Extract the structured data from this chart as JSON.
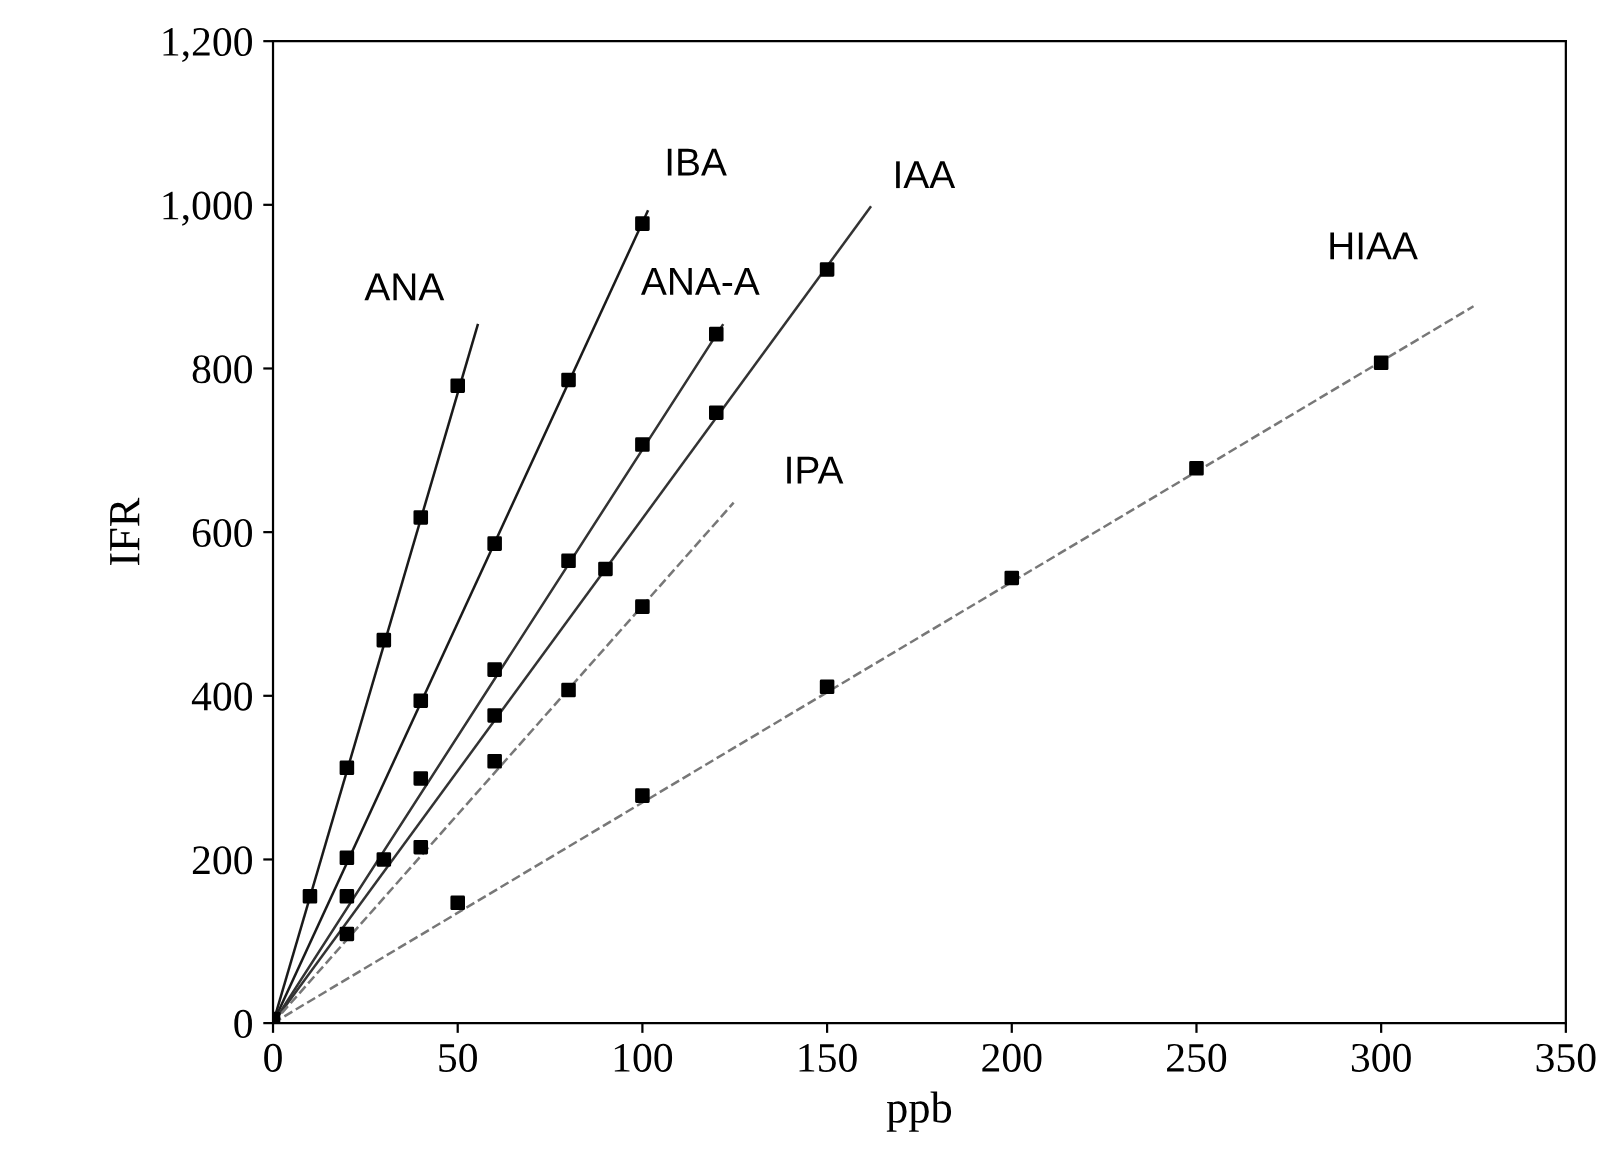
{
  "chart_data": {
    "type": "scatter",
    "xlabel": "ppb",
    "ylabel": "IFR",
    "xlim": [
      0,
      350
    ],
    "ylim": [
      0,
      1200
    ],
    "xticks": [
      0,
      50,
      100,
      150,
      200,
      250,
      300,
      350
    ],
    "yticks": [
      0,
      200,
      400,
      600,
      800,
      {
        "value": 1000,
        "label": "1,000"
      },
      {
        "value": 1200,
        "label": "1,200"
      }
    ],
    "grid": false,
    "legend": false,
    "series": [
      {
        "marker": "square",
        "color": "#000000",
        "x": [
          0,
          10,
          20,
          30,
          40,
          50
        ],
        "values": [
          5,
          155,
          312,
          468,
          618,
          779
        ]
      },
      {
        "marker": "square",
        "color": "#000000",
        "x": [
          20,
          40,
          60,
          80,
          100
        ],
        "values": [
          202,
          394,
          586,
          786,
          977
        ]
      },
      {
        "marker": "square",
        "color": "#000000",
        "x": [
          20,
          40,
          60,
          80,
          100,
          120
        ],
        "values": [
          155,
          299,
          432,
          565,
          707,
          842
        ]
      },
      {
        "marker": "square",
        "color": "#000000",
        "x": [
          30,
          60,
          90,
          120,
          150
        ],
        "values": [
          200,
          376,
          555,
          746,
          921
        ]
      },
      {
        "marker": "square",
        "color": "#000000",
        "x": [
          20,
          40,
          60,
          80,
          100
        ],
        "values": [
          109,
          215,
          320,
          407,
          509
        ]
      },
      {
        "marker": "square",
        "color": "#000000",
        "x": [
          50,
          100,
          150,
          200,
          250,
          300
        ],
        "values": [
          147,
          278,
          411,
          544,
          678,
          807
        ]
      },
      {
        "type": "line",
        "name": "ANA",
        "color": "#1a1a1a",
        "line_style": "solid",
        "x": [
          0,
          55.4
        ],
        "values": [
          0,
          853
        ]
      },
      {
        "type": "line",
        "name": "IBA",
        "color": "#1a1a1a",
        "line_style": "solid",
        "x": [
          0,
          101.4
        ],
        "values": [
          0,
          992
        ]
      },
      {
        "type": "line",
        "name": "ANA-A",
        "color": "#333333",
        "line_style": "solid",
        "x": [
          0,
          121.7
        ],
        "values": [
          0,
          853
        ]
      },
      {
        "type": "line",
        "name": "IAA",
        "color": "#333333",
        "line_style": "solid",
        "x": [
          0,
          161.7
        ],
        "values": [
          0,
          997
        ]
      },
      {
        "type": "line",
        "name": "IPA",
        "color": "#777777",
        "line_style": "dashed",
        "x": [
          0,
          124.7
        ],
        "values": [
          0,
          636
        ]
      },
      {
        "type": "line",
        "name": "HIAA",
        "color": "#777777",
        "line_style": "dashed",
        "x": [
          0,
          325
        ],
        "values": [
          0,
          876
        ]
      }
    ]
  }
}
